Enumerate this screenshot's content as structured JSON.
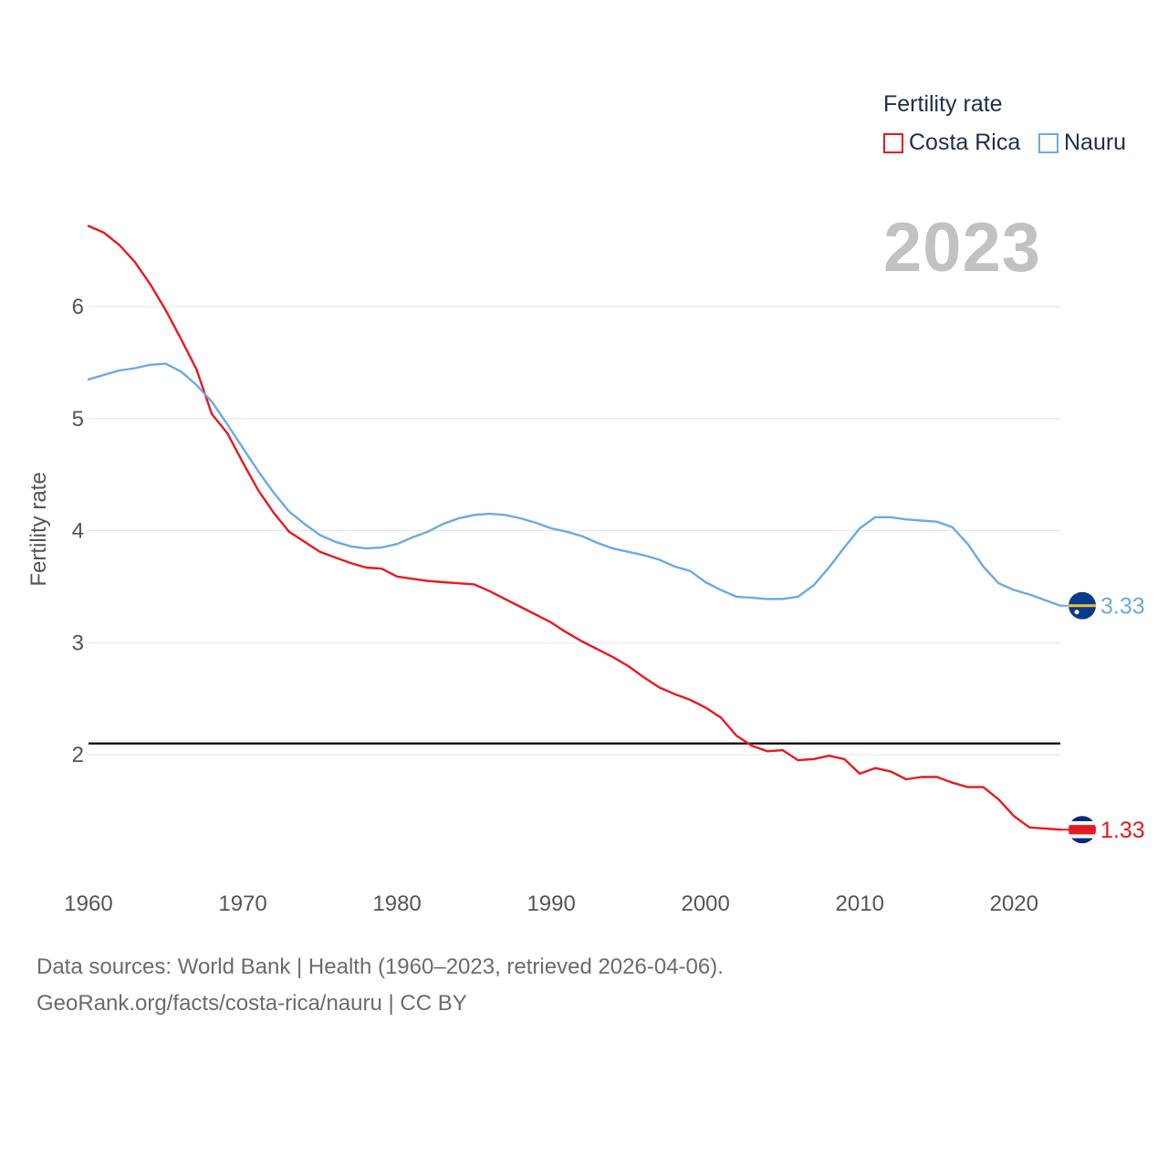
{
  "legend": {
    "title": "Fertility rate",
    "items": [
      {
        "name": "Costa Rica",
        "color": "#e8191f"
      },
      {
        "name": "Nauru",
        "color": "#6aaae4"
      }
    ]
  },
  "year_display": "2023",
  "footer": {
    "line1": "Data sources: World Bank | Health (1960–2023, retrieved 2026-04-06).",
    "line2": "GeoRank.org/facts/costa-rica/nauru | CC BY"
  },
  "chart_data": {
    "type": "line",
    "ylabel": "Fertility rate",
    "xlabel": "",
    "xlim": [
      1960,
      2023
    ],
    "ylim": [
      1.0,
      6.8
    ],
    "x_ticks": [
      1960,
      1970,
      1980,
      1990,
      2000,
      2010,
      2020
    ],
    "y_ticks": [
      2,
      3,
      4,
      5,
      6
    ],
    "reference_line": 2.1,
    "x": [
      1960,
      1961,
      1962,
      1963,
      1964,
      1965,
      1966,
      1967,
      1968,
      1969,
      1970,
      1971,
      1972,
      1973,
      1974,
      1975,
      1976,
      1977,
      1978,
      1979,
      1980,
      1981,
      1982,
      1983,
      1984,
      1985,
      1986,
      1987,
      1988,
      1989,
      1990,
      1991,
      1992,
      1993,
      1994,
      1995,
      1996,
      1997,
      1998,
      1999,
      2000,
      2001,
      2002,
      2003,
      2004,
      2005,
      2006,
      2007,
      2008,
      2009,
      2010,
      2011,
      2012,
      2013,
      2014,
      2015,
      2016,
      2017,
      2018,
      2019,
      2020,
      2021,
      2022,
      2023
    ],
    "series": [
      {
        "name": "Costa Rica",
        "color": "#e8191f",
        "end_label": "1.33",
        "values": [
          6.72,
          6.66,
          6.55,
          6.4,
          6.2,
          5.97,
          5.71,
          5.44,
          5.04,
          4.87,
          4.61,
          4.36,
          4.16,
          3.99,
          3.9,
          3.81,
          3.76,
          3.71,
          3.67,
          3.66,
          3.59,
          3.57,
          3.55,
          3.54,
          3.53,
          3.52,
          3.46,
          3.39,
          3.32,
          3.25,
          3.18,
          3.09,
          3.01,
          2.94,
          2.87,
          2.79,
          2.69,
          2.6,
          2.54,
          2.49,
          2.42,
          2.33,
          2.17,
          2.08,
          2.03,
          2.04,
          1.95,
          1.96,
          1.99,
          1.96,
          1.83,
          1.88,
          1.85,
          1.78,
          1.8,
          1.8,
          1.75,
          1.71,
          1.71,
          1.6,
          1.45,
          1.35,
          1.34,
          1.33
        ]
      },
      {
        "name": "Nauru",
        "color": "#6aaae4",
        "end_label": "3.33",
        "values": [
          5.35,
          5.39,
          5.43,
          5.45,
          5.48,
          5.49,
          5.42,
          5.3,
          5.15,
          4.95,
          4.74,
          4.53,
          4.34,
          4.17,
          4.06,
          3.96,
          3.9,
          3.86,
          3.84,
          3.85,
          3.88,
          3.94,
          3.99,
          4.06,
          4.11,
          4.14,
          4.15,
          4.14,
          4.11,
          4.07,
          4.02,
          3.99,
          3.95,
          3.89,
          3.84,
          3.81,
          3.78,
          3.74,
          3.68,
          3.64,
          3.54,
          3.47,
          3.41,
          3.4,
          3.39,
          3.39,
          3.41,
          3.51,
          3.67,
          3.85,
          4.02,
          4.12,
          4.12,
          4.1,
          4.09,
          4.08,
          4.03,
          3.88,
          3.68,
          3.53,
          3.47,
          3.43,
          3.38,
          3.33
        ]
      }
    ]
  }
}
